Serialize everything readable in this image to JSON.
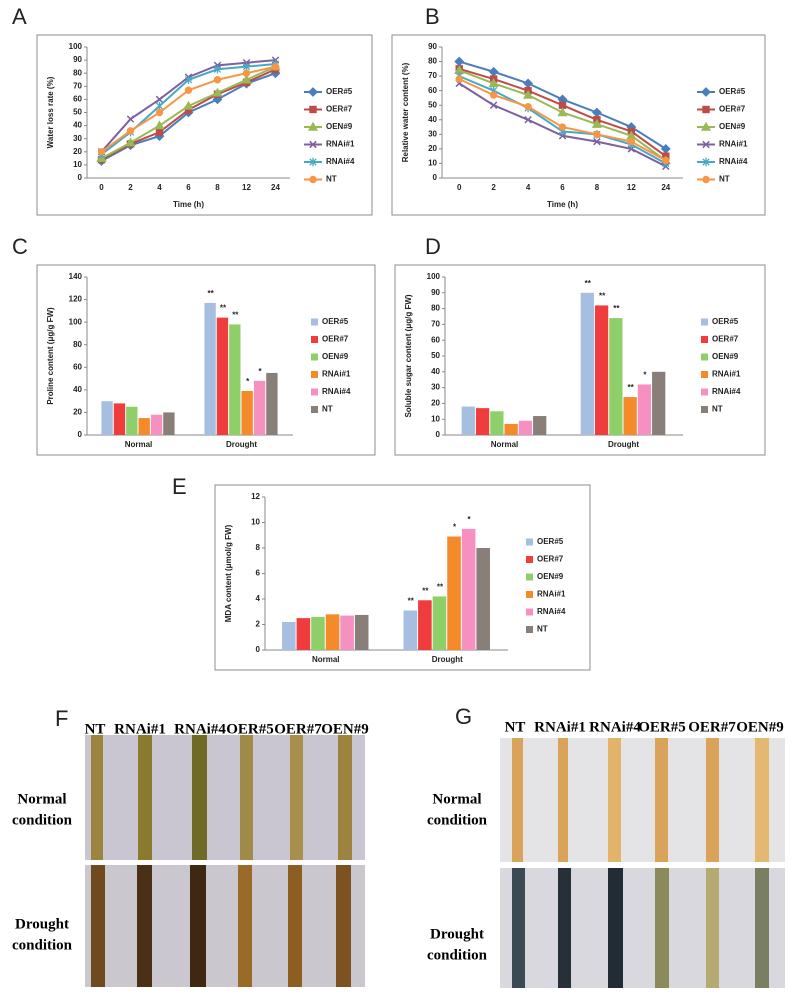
{
  "chart_data": [
    {
      "type": "line",
      "panel": "A",
      "x_label": "Time (h)",
      "y_label": "Water loss rate (%)",
      "categories": [
        "0",
        "2",
        "4",
        "6",
        "8",
        "12",
        "24"
      ],
      "ylim": [
        0,
        100
      ],
      "yticks": [
        0,
        10,
        20,
        30,
        40,
        50,
        60,
        70,
        80,
        90,
        100
      ],
      "series": [
        {
          "name": "OER#5",
          "color": "#4a7ebb",
          "marker": "diamond",
          "values": [
            13,
            25,
            32,
            50,
            60,
            72,
            80
          ]
        },
        {
          "name": "OER#7",
          "color": "#be4b48",
          "marker": "square",
          "values": [
            14,
            26,
            35,
            52,
            64,
            73,
            83
          ]
        },
        {
          "name": "OEN#9",
          "color": "#98b954",
          "marker": "triangle",
          "values": [
            15,
            27,
            40,
            55,
            65,
            75,
            85
          ]
        },
        {
          "name": "RNAi#1",
          "color": "#7d60a0",
          "marker": "cross",
          "values": [
            20,
            45,
            60,
            77,
            86,
            88,
            90
          ]
        },
        {
          "name": "RNAi#4",
          "color": "#46aac5",
          "marker": "star",
          "values": [
            18,
            35,
            55,
            75,
            83,
            85,
            87
          ]
        },
        {
          "name": "NT",
          "color": "#f79646",
          "marker": "circle",
          "values": [
            20,
            36,
            50,
            67,
            75,
            80,
            85
          ]
        }
      ]
    },
    {
      "type": "line",
      "panel": "B",
      "x_label": "Time (h)",
      "y_label": "Relative water content (%)",
      "categories": [
        "0",
        "2",
        "4",
        "6",
        "8",
        "12",
        "24"
      ],
      "ylim": [
        0,
        90
      ],
      "yticks": [
        0,
        10,
        20,
        30,
        40,
        50,
        60,
        70,
        80,
        90
      ],
      "series": [
        {
          "name": "OER#5",
          "color": "#4a7ebb",
          "marker": "diamond",
          "values": [
            80,
            73,
            65,
            54,
            45,
            35,
            20
          ]
        },
        {
          "name": "OER#7",
          "color": "#be4b48",
          "marker": "square",
          "values": [
            75,
            68,
            60,
            50,
            40,
            32,
            15
          ]
        },
        {
          "name": "OEN#9",
          "color": "#98b954",
          "marker": "triangle",
          "values": [
            74,
            65,
            57,
            45,
            37,
            29,
            12
          ]
        },
        {
          "name": "RNAi#1",
          "color": "#7d60a0",
          "marker": "cross",
          "values": [
            65,
            50,
            40,
            29,
            25,
            20,
            8
          ]
        },
        {
          "name": "RNAi#4",
          "color": "#46aac5",
          "marker": "star",
          "values": [
            70,
            60,
            48,
            32,
            30,
            23,
            10
          ]
        },
        {
          "name": "NT",
          "color": "#f79646",
          "marker": "circle",
          "values": [
            68,
            57,
            49,
            35,
            30,
            25,
            12
          ]
        }
      ]
    },
    {
      "type": "bar",
      "panel": "C",
      "y_label": "Proline content (μg/g FW)",
      "categories": [
        "Normal",
        "Drought"
      ],
      "ylim": [
        0,
        140
      ],
      "yticks": [
        0,
        20,
        40,
        60,
        80,
        100,
        120,
        140
      ],
      "series": [
        {
          "name": "OER#5",
          "color": "#a6bfe0",
          "values": [
            30,
            117
          ],
          "annotations": [
            null,
            "**"
          ]
        },
        {
          "name": "OER#7",
          "color": "#f03c3c",
          "values": [
            28,
            104
          ],
          "annotations": [
            null,
            "**"
          ]
        },
        {
          "name": "OEN#9",
          "color": "#8fcf6a",
          "values": [
            25,
            98
          ],
          "annotations": [
            null,
            "**"
          ]
        },
        {
          "name": "RNAi#1",
          "color": "#f58a2a",
          "values": [
            15,
            39
          ],
          "annotations": [
            null,
            "*"
          ]
        },
        {
          "name": "RNAi#4",
          "color": "#f590c0",
          "values": [
            18,
            48
          ],
          "annotations": [
            null,
            "*"
          ]
        },
        {
          "name": "NT",
          "color": "#8a7f78",
          "values": [
            20,
            55
          ],
          "annotations": [
            null,
            null
          ]
        }
      ]
    },
    {
      "type": "bar",
      "panel": "D",
      "y_label": "Soluble sugar content (μg/g FW)",
      "categories": [
        "Normal",
        "Drought"
      ],
      "ylim": [
        0,
        100
      ],
      "yticks": [
        0,
        10,
        20,
        30,
        40,
        50,
        60,
        70,
        80,
        90,
        100
      ],
      "series": [
        {
          "name": "OER#5",
          "color": "#a6bfe0",
          "values": [
            18,
            90
          ],
          "annotations": [
            null,
            "**"
          ]
        },
        {
          "name": "OER#7",
          "color": "#f03c3c",
          "values": [
            17,
            82
          ],
          "annotations": [
            null,
            "**"
          ]
        },
        {
          "name": "OEN#9",
          "color": "#8fcf6a",
          "values": [
            15,
            74
          ],
          "annotations": [
            null,
            "**"
          ]
        },
        {
          "name": "RNAi#1",
          "color": "#f58a2a",
          "values": [
            7,
            24
          ],
          "annotations": [
            null,
            "**"
          ]
        },
        {
          "name": "RNAi#4",
          "color": "#f590c0",
          "values": [
            9,
            32
          ],
          "annotations": [
            null,
            "*"
          ]
        },
        {
          "name": "NT",
          "color": "#8a7f78",
          "values": [
            12,
            40
          ],
          "annotations": [
            null,
            null
          ]
        }
      ]
    },
    {
      "type": "bar",
      "panel": "E",
      "y_label": "MDA content (μmol/g FW)",
      "categories": [
        "Normal",
        "Drought"
      ],
      "ylim": [
        0,
        12
      ],
      "yticks": [
        0,
        2,
        4,
        6,
        8,
        10,
        12
      ],
      "series": [
        {
          "name": "OER#5",
          "color": "#a6bfe0",
          "values": [
            2.2,
            3.1
          ],
          "annotations": [
            null,
            "**"
          ]
        },
        {
          "name": "OER#7",
          "color": "#f03c3c",
          "values": [
            2.5,
            3.9
          ],
          "annotations": [
            null,
            "**"
          ]
        },
        {
          "name": "OEN#9",
          "color": "#8fcf6a",
          "values": [
            2.6,
            4.2
          ],
          "annotations": [
            null,
            "**"
          ]
        },
        {
          "name": "RNAi#1",
          "color": "#f58a2a",
          "values": [
            2.8,
            8.9
          ],
          "annotations": [
            null,
            "*"
          ]
        },
        {
          "name": "RNAi#4",
          "color": "#f590c0",
          "values": [
            2.7,
            9.5
          ],
          "annotations": [
            null,
            "*"
          ]
        },
        {
          "name": "NT",
          "color": "#8a7f78",
          "values": [
            2.75,
            8.0
          ],
          "annotations": [
            null,
            null
          ]
        }
      ]
    }
  ],
  "photos": [
    {
      "panel": "F",
      "columns": [
        "NT",
        "RNAi#1",
        "RNAi#4",
        "OER#5",
        "OER#7",
        "OEN#9"
      ],
      "rows": [
        [
          "Normal",
          "condition"
        ],
        [
          "Drought",
          "condition"
        ]
      ]
    },
    {
      "panel": "G",
      "columns": [
        "NT",
        "RNAi#1",
        "RNAi#4",
        "OER#5",
        "OER#7",
        "OEN#9"
      ],
      "rows": [
        [
          "Normal",
          "condition"
        ],
        [
          "Drought",
          "condition"
        ]
      ]
    }
  ]
}
